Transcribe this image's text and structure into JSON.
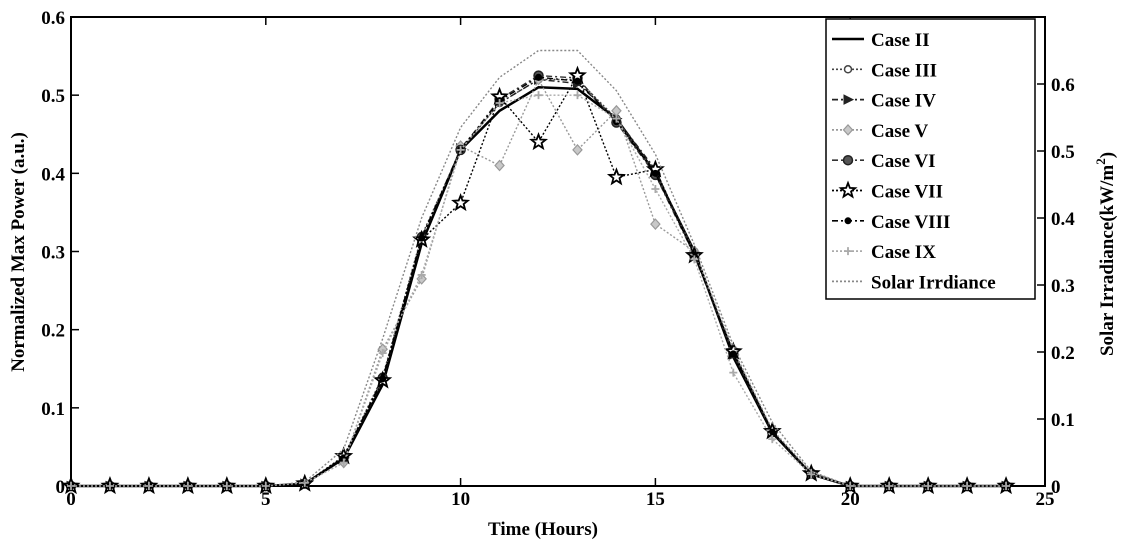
{
  "chart_data": {
    "type": "line",
    "xlabel": "Time (Hours)",
    "ylabel_left": "Normalized Max Power (a.u.)",
    "ylabel_right": "Solar Irradiance(kW/m",
    "ylabel_right_sup": "2",
    "ylabel_right_close": ")",
    "xlim": [
      0,
      25
    ],
    "ylim_left": [
      0,
      0.6
    ],
    "ylim_right": [
      0,
      0.7
    ],
    "x_ticks": [
      "0",
      "5",
      "10",
      "15",
      "20",
      "25"
    ],
    "y_left_ticks": [
      "0",
      "0.1",
      "0.2",
      "0.3",
      "0.4",
      "0.5",
      "0.6"
    ],
    "y_right_ticks": [
      "0",
      "0.1",
      "0.2",
      "0.3",
      "0.4",
      "0.5",
      "0.6"
    ],
    "grid": false,
    "legend_position": "top-right",
    "series": [
      {
        "name": "Case II",
        "axis": "left",
        "style": "solid",
        "marker": "none",
        "color": "#000000",
        "x": [
          0,
          1,
          2,
          3,
          4,
          5,
          6,
          7,
          8,
          9,
          10,
          11,
          12,
          13,
          14,
          15,
          16,
          17,
          18,
          19,
          20,
          21,
          22,
          23,
          24
        ],
        "y": [
          0,
          0,
          0,
          0,
          0,
          0,
          0.003,
          0.035,
          0.13,
          0.31,
          0.43,
          0.48,
          0.51,
          0.508,
          0.47,
          0.4,
          0.3,
          0.165,
          0.068,
          0.015,
          0,
          0,
          0,
          0,
          0
        ]
      },
      {
        "name": "Case III",
        "axis": "left",
        "style": "dotted",
        "marker": "circle",
        "color": "#444444",
        "x": [
          0,
          1,
          2,
          3,
          4,
          5,
          6,
          7,
          8,
          9,
          10,
          11,
          12,
          13,
          14,
          15,
          16,
          17,
          18,
          19,
          20,
          21,
          22,
          23,
          24
        ],
        "y": [
          0,
          0,
          0,
          0,
          0,
          0,
          0.003,
          0.038,
          0.14,
          0.32,
          0.43,
          0.49,
          0.52,
          0.52,
          0.47,
          0.4,
          0.3,
          0.17,
          0.07,
          0.016,
          0,
          0,
          0,
          0,
          0
        ]
      },
      {
        "name": "Case IV",
        "axis": "left",
        "style": "dashdot",
        "marker": "triangle-right",
        "color": "#222222",
        "x": [
          0,
          1,
          2,
          3,
          4,
          5,
          6,
          7,
          8,
          9,
          10,
          11,
          12,
          13,
          14,
          15,
          16,
          17,
          18,
          19,
          20,
          21,
          22,
          23,
          24
        ],
        "y": [
          0,
          0,
          0,
          0,
          0,
          0,
          0.003,
          0.036,
          0.135,
          0.315,
          0.432,
          0.49,
          0.52,
          0.515,
          0.47,
          0.405,
          0.295,
          0.168,
          0.069,
          0.015,
          0,
          0,
          0,
          0,
          0
        ]
      },
      {
        "name": "Case V",
        "axis": "left",
        "style": "dotted",
        "marker": "diamond",
        "color": "#999999",
        "x": [
          0,
          1,
          2,
          3,
          4,
          5,
          6,
          7,
          8,
          9,
          10,
          11,
          12,
          13,
          14,
          15,
          16,
          17,
          18,
          19,
          20,
          21,
          22,
          23,
          24
        ],
        "y": [
          0,
          0,
          0,
          0,
          0,
          0,
          0.004,
          0.03,
          0.175,
          0.265,
          0.435,
          0.41,
          0.52,
          0.43,
          0.48,
          0.335,
          0.3,
          0.175,
          0.072,
          0.018,
          0,
          0,
          0,
          0,
          0
        ]
      },
      {
        "name": "Case VI",
        "axis": "left",
        "style": "dashdot",
        "marker": "circle-filled",
        "color": "#333333",
        "x": [
          0,
          1,
          2,
          3,
          4,
          5,
          6,
          7,
          8,
          9,
          10,
          11,
          12,
          13,
          14,
          15,
          16,
          17,
          18,
          19,
          20,
          21,
          22,
          23,
          24
        ],
        "y": [
          0,
          0,
          0,
          0,
          0,
          0,
          0.003,
          0.037,
          0.138,
          0.318,
          0.43,
          0.495,
          0.525,
          0.522,
          0.465,
          0.398,
          0.295,
          0.17,
          0.069,
          0.016,
          0,
          0,
          0,
          0,
          0
        ]
      },
      {
        "name": "Case VII",
        "axis": "left",
        "style": "dotted",
        "marker": "star",
        "color": "#000000",
        "x": [
          0,
          1,
          2,
          3,
          4,
          5,
          6,
          7,
          8,
          9,
          10,
          11,
          12,
          13,
          14,
          15,
          16,
          17,
          18,
          19,
          20,
          21,
          22,
          23,
          24
        ],
        "y": [
          0,
          0,
          0,
          0,
          0,
          0,
          0.003,
          0.038,
          0.135,
          0.315,
          0.362,
          0.498,
          0.44,
          0.525,
          0.395,
          0.405,
          0.295,
          0.172,
          0.07,
          0.016,
          0,
          0,
          0,
          0,
          0
        ]
      },
      {
        "name": "Case VIII",
        "axis": "left",
        "style": "dashdot",
        "marker": "dot",
        "color": "#000000",
        "x": [
          0,
          1,
          2,
          3,
          4,
          5,
          6,
          7,
          8,
          9,
          10,
          11,
          12,
          13,
          14,
          15,
          16,
          17,
          18,
          19,
          20,
          21,
          22,
          23,
          24
        ],
        "y": [
          0,
          0,
          0,
          0,
          0,
          0,
          0.003,
          0.036,
          0.137,
          0.317,
          0.43,
          0.493,
          0.523,
          0.518,
          0.466,
          0.4,
          0.296,
          0.169,
          0.069,
          0.015,
          0,
          0,
          0,
          0,
          0
        ]
      },
      {
        "name": "Case IX",
        "axis": "left",
        "style": "dotted",
        "marker": "plus",
        "color": "#aaaaaa",
        "x": [
          0,
          1,
          2,
          3,
          4,
          5,
          6,
          7,
          8,
          9,
          10,
          11,
          12,
          13,
          14,
          15,
          16,
          17,
          18,
          19,
          20,
          21,
          22,
          23,
          24
        ],
        "y": [
          0,
          0,
          0,
          0,
          0,
          0,
          0.004,
          0.03,
          0.17,
          0.27,
          0.43,
          0.49,
          0.5,
          0.5,
          0.47,
          0.38,
          0.29,
          0.145,
          0.06,
          0.015,
          0,
          0,
          0,
          0,
          0
        ]
      },
      {
        "name": "Solar Irrdiance",
        "axis": "right",
        "style": "dotted",
        "marker": "none",
        "color": "#888888",
        "x": [
          0,
          1,
          2,
          3,
          4,
          5,
          6,
          7,
          8,
          9,
          10,
          11,
          12,
          13,
          14,
          15,
          16,
          17,
          18,
          19,
          20,
          21,
          22,
          23,
          24
        ],
        "y": [
          0,
          0,
          0,
          0,
          0,
          0,
          0.006,
          0.055,
          0.22,
          0.4,
          0.535,
          0.61,
          0.65,
          0.65,
          0.59,
          0.495,
          0.36,
          0.21,
          0.095,
          0.022,
          0,
          0,
          0,
          0,
          0
        ]
      }
    ]
  }
}
